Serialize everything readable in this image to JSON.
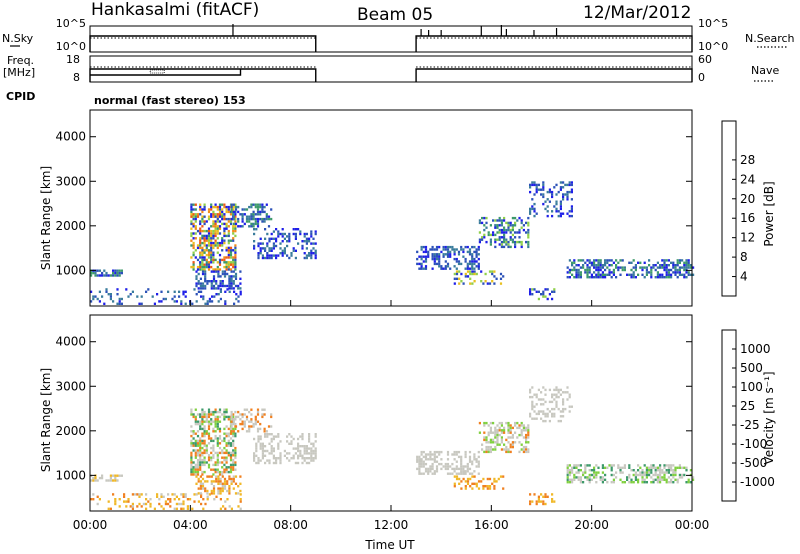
{
  "header": {
    "radar": "Hankasalmi (fitACF)",
    "beam": "Beam 05",
    "date": "12/Mar/2012",
    "cpid": "normal (fast stereo) 153"
  },
  "side_labels": {
    "nsky": "N.Sky",
    "nsearch": "N.Search",
    "freq": "Freq.",
    "freq_unit": "[MHz]",
    "nave": "Nave",
    "cpid": "CPID"
  },
  "colors": {
    "power": [
      "#1f1fe8",
      "#2c52b8",
      "#3a7c9c",
      "#3d9a6a",
      "#8fd04a",
      "#e8c020",
      "#f08c1c",
      "#ee5a18",
      "#e01810"
    ],
    "velocity": [
      "#1f1fe8",
      "#2c52b8",
      "#3d9a6a",
      "#80d040",
      "#c8c8c0",
      "#f0b828",
      "#f08020",
      "#ee4a18",
      "#e01010"
    ],
    "gray": "#c8c8c0"
  },
  "chart_data": [
    {
      "type": "line",
      "name": "noise-panel",
      "left_ticks": [
        "10^5",
        "10^0"
      ],
      "right_ticks": [
        "10^5",
        "10^0"
      ],
      "left_label": "N.Sky",
      "right_label": "N.Search",
      "segments": [
        [
          0,
          9
        ],
        [
          13,
          24
        ]
      ]
    },
    {
      "type": "line",
      "name": "frequency-panel",
      "left_ticks": [
        "18",
        "8"
      ],
      "right_ticks": [
        "60",
        "0"
      ],
      "left_label": "Freq. [MHz]",
      "right_label": "Nave",
      "segments": [
        [
          0,
          9
        ],
        [
          13,
          24
        ]
      ]
    },
    {
      "type": "heatmap",
      "name": "power-panel",
      "x_unit": "hours UT",
      "xlim": [
        0,
        24
      ],
      "ylim": [
        200,
        4600
      ],
      "ylabel": "Slant Range [km]",
      "y_ticks": [
        "1000",
        "2000",
        "3000",
        "4000"
      ],
      "colorbar": {
        "label": "Power [dB]",
        "ticks": [
          "4",
          "8",
          "12",
          "16",
          "20",
          "24",
          "28"
        ]
      },
      "bands": [
        {
          "x0": 0.0,
          "x1": 1.3,
          "y0": 880,
          "y1": 1020,
          "colors": [
            0,
            1,
            2,
            3
          ],
          "density": 0.8
        },
        {
          "x0": 0.0,
          "x1": 6.0,
          "y0": 230,
          "y1": 600,
          "colors": [
            0,
            1,
            2
          ],
          "density": 0.22
        },
        {
          "x0": 4.0,
          "x1": 5.8,
          "y0": 1000,
          "y1": 2500,
          "colors": [
            0,
            1,
            3,
            4,
            5,
            6,
            7
          ],
          "density": 0.75
        },
        {
          "x0": 4.2,
          "x1": 6.0,
          "y0": 600,
          "y1": 1000,
          "colors": [
            0,
            1,
            2
          ],
          "density": 0.6
        },
        {
          "x0": 5.6,
          "x1": 7.2,
          "y0": 2000,
          "y1": 2500,
          "colors": [
            0,
            1,
            2,
            3
          ],
          "density": 0.55
        },
        {
          "x0": 6.5,
          "x1": 9.0,
          "y0": 1300,
          "y1": 1950,
          "colors": [
            0,
            1,
            2
          ],
          "density": 0.45
        },
        {
          "x0": 13.0,
          "x1": 15.5,
          "y0": 1050,
          "y1": 1550,
          "colors": [
            0,
            1,
            2
          ],
          "density": 0.6
        },
        {
          "x0": 15.5,
          "x1": 17.5,
          "y0": 1550,
          "y1": 2200,
          "colors": [
            0,
            1,
            2,
            3,
            4
          ],
          "density": 0.6
        },
        {
          "x0": 17.5,
          "x1": 19.2,
          "y0": 2200,
          "y1": 3000,
          "colors": [
            0,
            1,
            2
          ],
          "density": 0.4
        },
        {
          "x0": 14.5,
          "x1": 16.5,
          "y0": 700,
          "y1": 1000,
          "colors": [
            0,
            1,
            4,
            5
          ],
          "density": 0.45
        },
        {
          "x0": 17.5,
          "x1": 18.5,
          "y0": 350,
          "y1": 600,
          "colors": [
            0,
            1,
            4
          ],
          "density": 0.5
        },
        {
          "x0": 19.0,
          "x1": 24.0,
          "y0": 850,
          "y1": 1250,
          "colors": [
            0,
            1,
            2,
            3
          ],
          "density": 0.7
        }
      ]
    },
    {
      "type": "heatmap",
      "name": "velocity-panel",
      "x_unit": "hours UT",
      "xlim": [
        0,
        24
      ],
      "ylim": [
        200,
        4600
      ],
      "ylabel": "Slant Range [km]",
      "xlabel": "Time UT",
      "y_ticks": [
        "1000",
        "2000",
        "3000",
        "4000"
      ],
      "x_ticks": [
        "00:00",
        "04:00",
        "08:00",
        "12:00",
        "16:00",
        "20:00",
        "00:00"
      ],
      "colorbar": {
        "label": "Velocity [m s⁻¹]",
        "ticks": [
          "1000",
          "500",
          "100",
          "25",
          "-25",
          "-100",
          "-500",
          "-1000"
        ]
      },
      "bands": [
        {
          "x0": 0.0,
          "x1": 1.3,
          "y0": 880,
          "y1": 1020,
          "colors": [
            4,
            4,
            5
          ],
          "density": 0.75
        },
        {
          "x0": 0.0,
          "x1": 6.0,
          "y0": 230,
          "y1": 600,
          "colors": [
            5,
            5,
            4,
            6
          ],
          "density": 0.3
        },
        {
          "x0": 4.0,
          "x1": 5.8,
          "y0": 1000,
          "y1": 2500,
          "colors": [
            4,
            4,
            3,
            2,
            6
          ],
          "density": 0.7
        },
        {
          "x0": 4.2,
          "x1": 6.0,
          "y0": 600,
          "y1": 1000,
          "colors": [
            5,
            6,
            4
          ],
          "density": 0.55
        },
        {
          "x0": 5.6,
          "x1": 7.2,
          "y0": 2000,
          "y1": 2500,
          "colors": [
            4,
            4,
            6
          ],
          "density": 0.55
        },
        {
          "x0": 6.5,
          "x1": 9.0,
          "y0": 1300,
          "y1": 1950,
          "colors": [
            4
          ],
          "density": 0.5
        },
        {
          "x0": 13.0,
          "x1": 15.5,
          "y0": 1050,
          "y1": 1550,
          "colors": [
            4
          ],
          "density": 0.6
        },
        {
          "x0": 15.5,
          "x1": 17.5,
          "y0": 1550,
          "y1": 2200,
          "colors": [
            4,
            4,
            3,
            6
          ],
          "density": 0.6
        },
        {
          "x0": 17.5,
          "x1": 19.2,
          "y0": 2200,
          "y1": 3000,
          "colors": [
            4
          ],
          "density": 0.4
        },
        {
          "x0": 14.5,
          "x1": 16.5,
          "y0": 700,
          "y1": 1000,
          "colors": [
            6,
            5
          ],
          "density": 0.45
        },
        {
          "x0": 17.5,
          "x1": 18.5,
          "y0": 350,
          "y1": 600,
          "colors": [
            6,
            5
          ],
          "density": 0.5
        },
        {
          "x0": 19.0,
          "x1": 24.0,
          "y0": 850,
          "y1": 1250,
          "colors": [
            4,
            4,
            3,
            2
          ],
          "density": 0.65
        }
      ]
    }
  ]
}
